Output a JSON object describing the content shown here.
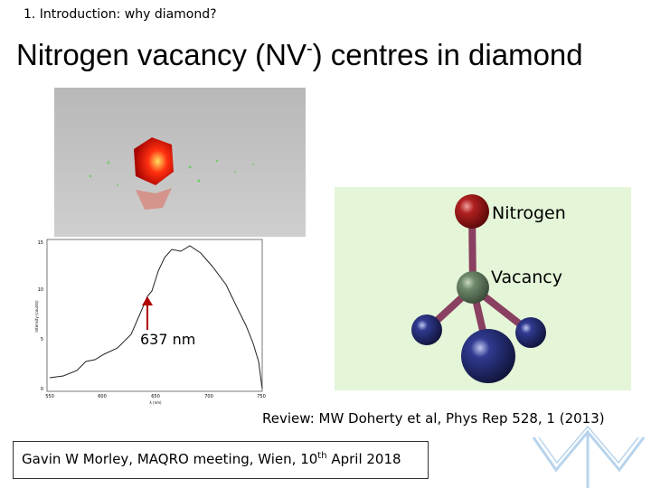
{
  "header": {
    "section": "1. Introduction: why diamond?"
  },
  "title": {
    "main": "Nitrogen vacancy (NV",
    "superscript": "-",
    "rest": ") centres in diamond"
  },
  "spectrum": {
    "y_axis_label": "Intensity (counts)",
    "x_axis_label": "λ (nm)",
    "y_ticks": [
      "15",
      "10",
      "5",
      "0"
    ],
    "x_ticks": [
      "550",
      "600",
      "650",
      "700",
      "750"
    ],
    "annotation": "637 nm"
  },
  "molecule": {
    "labels": [
      "Nitrogen",
      "Vacancy"
    ]
  },
  "reference": "Review: MW Doherty et al, Phys Rep 528, 1 (2013)",
  "footer": {
    "text": "Gavin W Morley, MAQRO meeting, Wien, 10",
    "superscript": "th",
    "rest": " April 2018"
  }
}
